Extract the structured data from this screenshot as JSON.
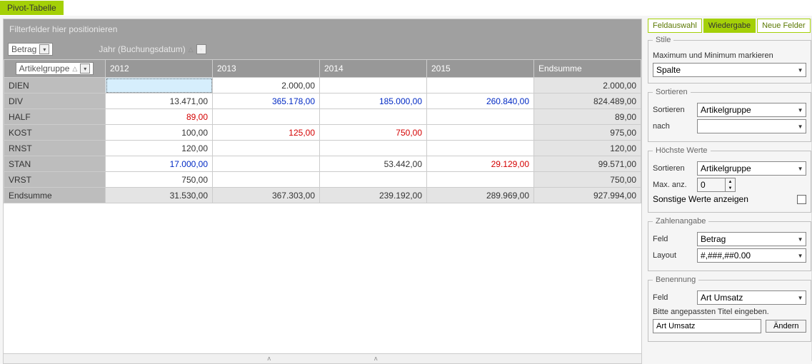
{
  "title": "Pivot-Tabelle",
  "filter_drop_hint": "Filterfelder hier positionieren",
  "data_field": {
    "label": "Betrag"
  },
  "col_field": {
    "label": "Jahr (Buchungsdatum)"
  },
  "row_field": {
    "label": "Artikelgruppe"
  },
  "columns": [
    "2012",
    "2013",
    "2014",
    "2015",
    "Endsumme"
  ],
  "rows": [
    {
      "hdr": "DIEN",
      "cells": [
        {
          "v": "",
          "sel": true
        },
        {
          "v": "2.000,00"
        },
        {
          "v": ""
        },
        {
          "v": ""
        },
        {
          "v": "2.000,00",
          "tot": true
        }
      ]
    },
    {
      "hdr": "DIV",
      "cells": [
        {
          "v": "13.471,00"
        },
        {
          "v": "365.178,00",
          "cls": "bold-blue"
        },
        {
          "v": "185.000,00",
          "cls": "bold-blue"
        },
        {
          "v": "260.840,00",
          "cls": "bold-blue"
        },
        {
          "v": "824.489,00",
          "tot": true
        }
      ]
    },
    {
      "hdr": "HALF",
      "cells": [
        {
          "v": "89,00",
          "cls": "bold-red"
        },
        {
          "v": ""
        },
        {
          "v": ""
        },
        {
          "v": ""
        },
        {
          "v": "89,00",
          "tot": true
        }
      ]
    },
    {
      "hdr": "KOST",
      "cells": [
        {
          "v": "100,00"
        },
        {
          "v": "125,00",
          "cls": "bold-red"
        },
        {
          "v": "750,00",
          "cls": "bold-red"
        },
        {
          "v": ""
        },
        {
          "v": "975,00",
          "tot": true
        }
      ]
    },
    {
      "hdr": "RNST",
      "cells": [
        {
          "v": "120,00"
        },
        {
          "v": ""
        },
        {
          "v": ""
        },
        {
          "v": ""
        },
        {
          "v": "120,00",
          "tot": true
        }
      ]
    },
    {
      "hdr": "STAN",
      "cells": [
        {
          "v": "17.000,00",
          "cls": "bold-blue"
        },
        {
          "v": ""
        },
        {
          "v": "53.442,00"
        },
        {
          "v": "29.129,00",
          "cls": "bold-red"
        },
        {
          "v": "99.571,00",
          "tot": true
        }
      ]
    },
    {
      "hdr": "VRST",
      "cells": [
        {
          "v": "750,00"
        },
        {
          "v": ""
        },
        {
          "v": ""
        },
        {
          "v": ""
        },
        {
          "v": "750,00",
          "tot": true
        }
      ]
    },
    {
      "hdr": "Endsumme",
      "total": true,
      "cells": [
        {
          "v": "31.530,00",
          "tot": true
        },
        {
          "v": "367.303,00",
          "tot": true
        },
        {
          "v": "239.192,00",
          "tot": true
        },
        {
          "v": "289.969,00",
          "tot": true
        },
        {
          "v": "927.994,00",
          "tot": true
        }
      ]
    }
  ],
  "tabs": {
    "feldauswahl": "Feldauswahl",
    "wiedergabe": "Wiedergabe",
    "neue_felder": "Neue Felder"
  },
  "panel": {
    "stile": {
      "legend": "Stile",
      "mark_label": "Maximum und Minimum markieren",
      "mark_value": "Spalte"
    },
    "sortieren": {
      "legend": "Sortieren",
      "sort_label": "Sortieren",
      "sort_value": "Artikelgruppe",
      "nach_label": "nach",
      "nach_value": ""
    },
    "hoechste": {
      "legend": "Höchste Werte",
      "sort_label": "Sortieren",
      "sort_value": "Artikelgruppe",
      "max_label": "Max. anz.",
      "max_value": "0",
      "other_label": "Sonstige Werte anzeigen"
    },
    "zahlen": {
      "legend": "Zahlenangabe",
      "feld_label": "Feld",
      "feld_value": "Betrag",
      "layout_label": "Layout",
      "layout_value": "#,###,##0.00"
    },
    "benennung": {
      "legend": "Benennung",
      "feld_label": "Feld",
      "feld_value": "Art Umsatz",
      "hint": "Bitte angepassten Titel eingeben.",
      "input_value": "Art Umsatz",
      "button": "Ändern"
    }
  },
  "colors": {
    "accent": "#a4d007",
    "header_gray": "#a0a0a0",
    "col_header_gray": "#989898",
    "row_header_gray": "#bdbdbd",
    "total_gray": "#e4e4e4",
    "selection_blue": "#d6eefc",
    "bold_blue": "#0029c4",
    "bold_red": "#d40000"
  }
}
